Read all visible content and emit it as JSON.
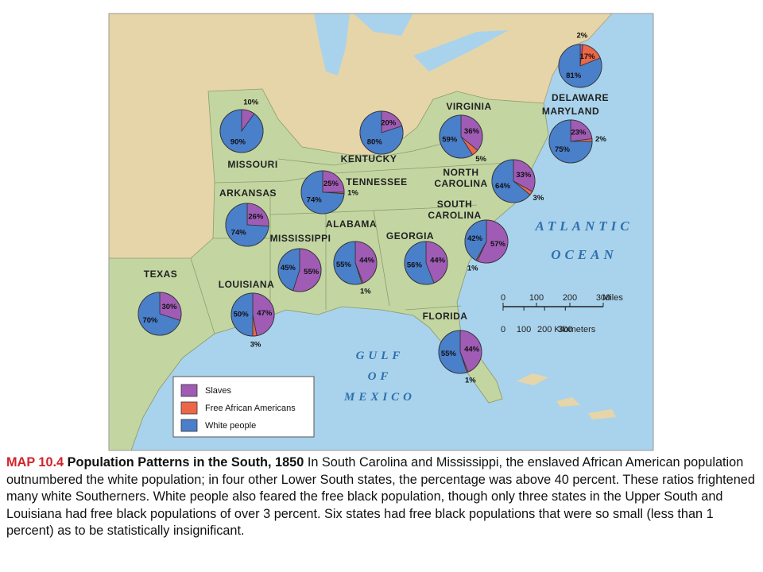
{
  "map": {
    "pies": [
      {
        "state": [
          "MISSOURI"
        ],
        "values": [
          10,
          null,
          90
        ],
        "value_labels": [
          "10%",
          null,
          "90%"
        ]
      },
      {
        "state": [
          "KENTUCKY"
        ],
        "values": [
          20,
          null,
          80
        ],
        "value_labels": [
          "20%",
          null,
          "80%"
        ]
      },
      {
        "state": [
          "VIRGINIA"
        ],
        "values": [
          36,
          5,
          59
        ],
        "value_labels": [
          "36%",
          "5%",
          "59%"
        ]
      },
      {
        "state": [
          "DELAWARE"
        ],
        "values": [
          2,
          17,
          81
        ],
        "value_labels": [
          "2%",
          "17%",
          "81%"
        ]
      },
      {
        "state": [
          "MARYLAND"
        ],
        "values": [
          23,
          2,
          75
        ],
        "value_labels": [
          "23%",
          "2%",
          "75%"
        ]
      },
      {
        "state": [
          "TENNESSEE"
        ],
        "values": [
          25,
          1,
          74
        ],
        "value_labels": [
          "25%",
          "1%",
          "74%"
        ]
      },
      {
        "state": [
          "ARKANSAS"
        ],
        "values": [
          26,
          null,
          74
        ],
        "value_labels": [
          "26%",
          null,
          "74%"
        ]
      },
      {
        "state": [
          "NORTH",
          "CAROLINA"
        ],
        "values": [
          33,
          3,
          64
        ],
        "value_labels": [
          "33%",
          "3%",
          "64%"
        ]
      },
      {
        "state": [
          "SOUTH",
          "CAROLINA"
        ],
        "values": [
          57,
          1,
          42
        ],
        "value_labels": [
          "57%",
          "1%",
          "42%"
        ]
      },
      {
        "state": [
          "MISSISSIPPI"
        ],
        "values": [
          55,
          null,
          45
        ],
        "value_labels": [
          "55%",
          null,
          "45%"
        ]
      },
      {
        "state": [
          "ALABAMA"
        ],
        "values": [
          44,
          1,
          55
        ],
        "value_labels": [
          "44%",
          "1%",
          "55%"
        ]
      },
      {
        "state": [
          "GEORGIA"
        ],
        "values": [
          44,
          null,
          56
        ],
        "value_labels": [
          "44%",
          null,
          "56%"
        ]
      },
      {
        "state": [
          "TEXAS"
        ],
        "values": [
          30,
          null,
          70
        ],
        "value_labels": [
          "30%",
          null,
          "70%"
        ]
      },
      {
        "state": [
          "LOUISIANA"
        ],
        "values": [
          47,
          3,
          50
        ],
        "value_labels": [
          "47%",
          "3%",
          "50%"
        ]
      },
      {
        "state": [
          "FLORIDA"
        ],
        "values": [
          44,
          1,
          55
        ],
        "value_labels": [
          "44%",
          "1%",
          "55%"
        ]
      }
    ],
    "legend": [
      {
        "label": "Slaves",
        "color": "#a05cb5"
      },
      {
        "label": "Free African Americans",
        "color": "#ee6648"
      },
      {
        "label": "White people",
        "color": "#4a7fca"
      }
    ],
    "oceans": [
      [
        "ATLANTIC",
        "OCEAN"
      ],
      [
        "GULF",
        "OF",
        "MEXICO"
      ]
    ],
    "scale": {
      "miles": [
        0,
        100,
        200,
        300
      ],
      "miles_unit": "Miles",
      "kilometers": [
        0,
        100,
        200,
        300
      ],
      "kilometers_unit": "Kilometers"
    }
  },
  "caption": {
    "label": "MAP 10.4",
    "title": "Population Patterns in the South, 1850",
    "text": "In South Carolina and Mississippi, the enslaved African American population outnumbered the white population; in four other Lower South states, the percentage was above 40 percent. These ratios frightened many white Southerners. White people also feared the free black population, though only three states in the Upper South and Louisiana had free black populations of over 3 percent. Six states had free black populations that were so small (less than 1 percent) as to be statistically insignificant."
  }
}
